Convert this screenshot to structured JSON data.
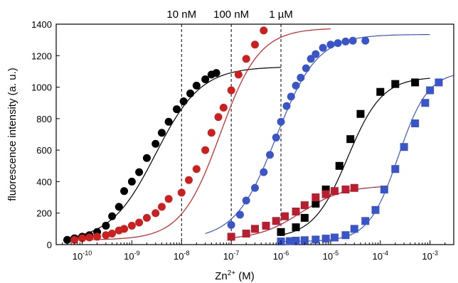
{
  "chart_data": {
    "type": "scatter",
    "title": "",
    "xlabel": "Zn2+ (M)",
    "xlabel_base": "Zn",
    "xlabel_sup": "2+",
    "xlabel_unit": " (M)",
    "ylabel": "fluorescence intensity (a. u.)",
    "xscale": "log",
    "xlim": [
      3e-11,
      0.003
    ],
    "ylim": [
      0,
      1400
    ],
    "yticks": [
      0,
      200,
      400,
      600,
      800,
      1000,
      1200,
      1400
    ],
    "xticks": [
      {
        "value": 1e-10,
        "base": "10",
        "exp": "-10"
      },
      {
        "value": 1e-09,
        "base": "10",
        "exp": "-9"
      },
      {
        "value": 1e-08,
        "base": "10",
        "exp": "-8"
      },
      {
        "value": 1e-07,
        "base": "10",
        "exp": "-7"
      },
      {
        "value": 1e-06,
        "base": "10",
        "exp": "-6"
      },
      {
        "value": 1e-05,
        "base": "10",
        "exp": "-5"
      },
      {
        "value": 0.0001,
        "base": "10",
        "exp": "-4"
      },
      {
        "value": 0.001,
        "base": "10",
        "exp": "-3"
      }
    ],
    "reference_lines": [
      {
        "x": 1e-08,
        "label": "10 nM"
      },
      {
        "x": 1e-07,
        "label": "100 nM"
      },
      {
        "x": 1e-06,
        "label": "1 µM"
      }
    ],
    "series": [
      {
        "color": "#000000",
        "marker": "circle",
        "points": [
          [
            5e-11,
            30
          ],
          [
            7e-11,
            40
          ],
          [
            1e-10,
            50
          ],
          [
            1.4e-10,
            60
          ],
          [
            2e-10,
            80
          ],
          [
            3e-10,
            120
          ],
          [
            4e-10,
            180
          ],
          [
            5.5e-10,
            240
          ],
          [
            7e-10,
            340
          ],
          [
            1e-09,
            400
          ],
          [
            1.4e-09,
            460
          ],
          [
            2e-09,
            550
          ],
          [
            3e-09,
            640
          ],
          [
            4e-09,
            710
          ],
          [
            5.5e-09,
            780
          ],
          [
            8e-09,
            860
          ],
          [
            1.1e-08,
            910
          ],
          [
            1.5e-08,
            960
          ],
          [
            2e-08,
            1010
          ],
          [
            3e-08,
            1050
          ],
          [
            4e-08,
            1080
          ],
          [
            5e-08,
            1090
          ]
        ],
        "fit": {
          "bottom": 20,
          "top": 1130,
          "ec50": 3e-09,
          "hill": 0.95,
          "x_start": 5e-11,
          "x_end": 1e-06
        }
      },
      {
        "color": "#cc2020",
        "marker": "circle",
        "points": [
          [
            7e-11,
            30
          ],
          [
            1e-10,
            40
          ],
          [
            1.4e-10,
            45
          ],
          [
            2e-10,
            50
          ],
          [
            3e-10,
            60
          ],
          [
            4e-10,
            70
          ],
          [
            5.5e-10,
            90
          ],
          [
            7e-10,
            100
          ],
          [
            1e-09,
            120
          ],
          [
            1.4e-09,
            140
          ],
          [
            2e-09,
            170
          ],
          [
            3e-09,
            200
          ],
          [
            4e-09,
            240
          ],
          [
            5.5e-09,
            290
          ],
          [
            1e-08,
            330
          ],
          [
            1.4e-08,
            410
          ],
          [
            2e-08,
            480
          ],
          [
            3e-08,
            600
          ],
          [
            4e-08,
            710
          ],
          [
            5.5e-08,
            810
          ],
          [
            7e-08,
            870
          ],
          [
            1e-07,
            980
          ],
          [
            1.4e-07,
            1080
          ],
          [
            2e-07,
            1180
          ],
          [
            3e-07,
            1270
          ],
          [
            4.5e-07,
            1360
          ]
        ],
        "fit": {
          "bottom": 30,
          "top": 1375,
          "ec50": 6e-08,
          "hill": 1.1,
          "x_start": 1e-10,
          "x_end": 1e-05
        }
      },
      {
        "color": "#3a55c8",
        "marker": "circle",
        "points": [
          [
            1e-07,
            125
          ],
          [
            1.5e-07,
            190
          ],
          [
            2e-07,
            280
          ],
          [
            3e-07,
            360
          ],
          [
            4.5e-07,
            460
          ],
          [
            6e-07,
            570
          ],
          [
            8e-07,
            680
          ],
          [
            1e-06,
            780
          ],
          [
            1.3e-06,
            880
          ],
          [
            1.6e-06,
            940
          ],
          [
            2e-06,
            1010
          ],
          [
            2.5e-06,
            1060
          ],
          [
            3.2e-06,
            1120
          ],
          [
            4e-06,
            1180
          ],
          [
            5e-06,
            1210
          ],
          [
            7e-06,
            1250
          ],
          [
            1e-05,
            1270
          ],
          [
            1.4e-05,
            1280
          ],
          [
            2e-05,
            1290
          ],
          [
            2.8e-05,
            1295
          ],
          [
            5e-05,
            1295
          ]
        ],
        "fit": {
          "bottom": 30,
          "top": 1335,
          "ec50": 8e-07,
          "hill": 1.05,
          "x_start": 3e-08,
          "x_end": 0.001
        }
      },
      {
        "color": "#000000",
        "marker": "square",
        "points": [
          [
            1e-06,
            80
          ],
          [
            2e-06,
            110
          ],
          [
            3e-06,
            170
          ],
          [
            5e-06,
            260
          ],
          [
            8e-06,
            350
          ],
          [
            1.5e-05,
            500
          ],
          [
            2.5e-05,
            670
          ],
          [
            4e-05,
            830
          ],
          [
            0.0001,
            970
          ],
          [
            0.0002,
            1020
          ],
          [
            0.0005,
            1030
          ]
        ],
        "fit": {
          "bottom": 40,
          "top": 1065,
          "ec50": 2.2e-05,
          "hill": 1.25,
          "x_start": 1e-06,
          "x_end": 0.001
        }
      },
      {
        "color": "#b81e2e",
        "marker": "square",
        "points": [
          [
            1e-07,
            50
          ],
          [
            2e-07,
            70
          ],
          [
            3e-07,
            100
          ],
          [
            5e-07,
            120
          ],
          [
            8e-07,
            150
          ],
          [
            1.2e-06,
            180
          ],
          [
            2e-06,
            210
          ],
          [
            3e-06,
            250
          ],
          [
            5e-06,
            300
          ],
          [
            8e-06,
            320
          ],
          [
            1.2e-05,
            340
          ],
          [
            2e-05,
            350
          ],
          [
            3e-05,
            360
          ]
        ],
        "fit": {
          "bottom": 30,
          "top": 375,
          "ec50": 2.5e-06,
          "hill": 1.0,
          "x_start": 1e-07,
          "x_end": 0.0001
        }
      },
      {
        "color": "#3a55c8",
        "marker": "square",
        "points": [
          [
            1e-06,
            20
          ],
          [
            1.5e-06,
            22
          ],
          [
            2e-06,
            25
          ],
          [
            3e-06,
            28
          ],
          [
            5e-06,
            32
          ],
          [
            8e-06,
            38
          ],
          [
            1.2e-05,
            45
          ],
          [
            2e-05,
            60
          ],
          [
            3e-05,
            100
          ],
          [
            5e-05,
            150
          ],
          [
            8e-05,
            220
          ],
          [
            0.00012,
            350
          ],
          [
            0.0002,
            480
          ],
          [
            0.0003,
            620
          ],
          [
            0.0005,
            770
          ],
          [
            0.0008,
            900
          ],
          [
            0.001,
            980
          ],
          [
            0.0015,
            1030
          ]
        ],
        "fit": {
          "bottom": 20,
          "top": 1100,
          "ec50": 0.00023,
          "hill": 1.45,
          "x_start": 1e-06,
          "x_end": 0.003
        }
      }
    ]
  }
}
